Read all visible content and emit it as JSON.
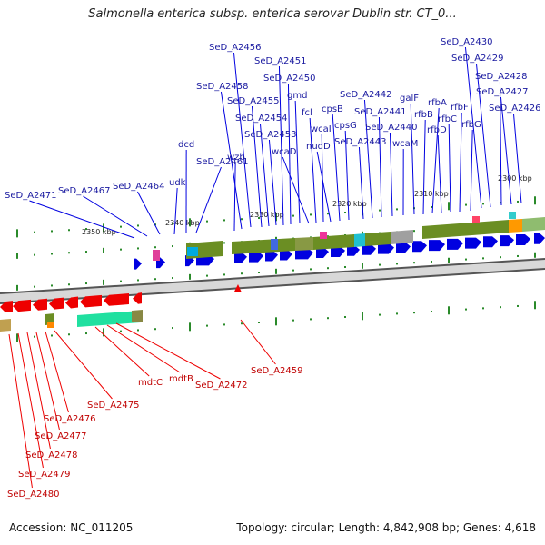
{
  "title": "Salmonella enterica subsp. enterica serovar Dublin str. CT_0...",
  "footer": {
    "accession": "Accession: NC_011205",
    "stats": "Topology: circular; Length: 4,842,908 bp; Genes: 4,618"
  },
  "scale_labels": [
    "2350 kbp",
    "2340 kbp",
    "2330 kbp",
    "2320 kbp",
    "2310 kbp",
    "2300 kbp"
  ],
  "top_labels": [
    "SeD_A2471",
    "SeD_A2467",
    "SeD_A2464",
    "udk",
    "dcd",
    "SeD_A2461",
    "wzb",
    "SeD_A2458",
    "SeD_A2456",
    "SeD_A2455",
    "SeD_A2454",
    "SeD_A2453",
    "SeD_A2451",
    "SeD_A2450",
    "gmd",
    "wcaD",
    "fcl",
    "wcaI",
    "nudD",
    "cpsB",
    "cpsG",
    "SeD_A2443",
    "SeD_A2442",
    "SeD_A2441",
    "SeD_A2440",
    "wcaM",
    "galF",
    "rfbB",
    "rfbA",
    "rfbD",
    "rfbC",
    "rfbF",
    "rfbG",
    "SeD_A2430",
    "SeD_A2429",
    "SeD_A2428",
    "SeD_A2427",
    "SeD_A2426"
  ],
  "bottom_labels": [
    "SeD_A2480",
    "SeD_A2479",
    "SeD_A2478",
    "SeD_A2477",
    "SeD_A2476",
    "SeD_A2475",
    "mdtC",
    "mdtB",
    "SeD_A2472",
    "SeD_A2459"
  ],
  "colors": {
    "forward_gene": "#0000e0",
    "reverse_gene": "#ee0000",
    "top_label": "#1a1aa0",
    "bottom_label": "#c00000"
  }
}
